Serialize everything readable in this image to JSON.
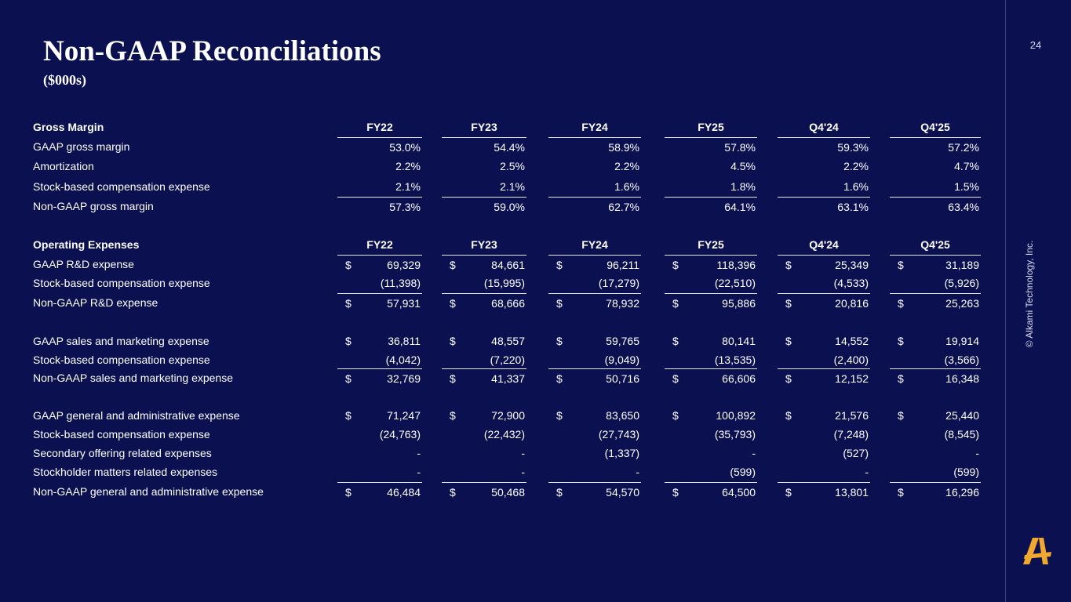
{
  "title": "Non-GAAP Reconciliations",
  "subtitle": "($000s)",
  "page_number": "24",
  "copyright": "© Alkami Technology, Inc.",
  "logo_icon": "alkami-a-logo-icon",
  "brand_color": "#f0a830",
  "background_color": "#0b1150",
  "gross_margin": {
    "header": {
      "label": "Gross Margin",
      "columns": [
        "FY22",
        "FY23",
        "FY24",
        "FY25",
        "Q4'24",
        "Q4'25"
      ]
    },
    "rows": [
      {
        "label": "GAAP gross margin",
        "values": [
          "53.0%",
          "54.4%",
          "58.9%",
          "57.8%",
          "59.3%",
          "57.2%"
        ]
      },
      {
        "label": "Amortization",
        "values": [
          "2.2%",
          "2.5%",
          "2.2%",
          "4.5%",
          "2.2%",
          "4.7%"
        ]
      },
      {
        "label": "Stock-based compensation expense",
        "values": [
          "2.1%",
          "2.1%",
          "1.6%",
          "1.8%",
          "1.6%",
          "1.5%"
        ]
      },
      {
        "label": "Non-GAAP gross margin",
        "values": [
          "57.3%",
          "59.0%",
          "62.7%",
          "64.1%",
          "63.1%",
          "63.4%"
        ]
      }
    ]
  },
  "operating_expenses": {
    "header": {
      "label": "Operating Expenses",
      "columns": [
        "FY22",
        "FY23",
        "FY24",
        "FY25",
        "Q4'24",
        "Q4'25"
      ]
    },
    "currency_symbol": "$",
    "rd": [
      {
        "label": "GAAP R&D expense",
        "values": [
          "69,329",
          "84,661",
          "96,211",
          "118,396",
          "25,349",
          "31,189"
        ]
      },
      {
        "label": "Stock-based compensation expense",
        "values": [
          "(11,398)",
          "(15,995)",
          "(17,279)",
          "(22,510)",
          "(4,533)",
          "(5,926)"
        ]
      },
      {
        "label": "Non-GAAP R&D expense",
        "values": [
          "57,931",
          "68,666",
          "78,932",
          "95,886",
          "20,816",
          "25,263"
        ]
      }
    ],
    "sales_marketing": [
      {
        "label": "GAAP sales and marketing expense",
        "values": [
          "36,811",
          "48,557",
          "59,765",
          "80,141",
          "14,552",
          "19,914"
        ]
      },
      {
        "label": "Stock-based compensation expense",
        "values": [
          "(4,042)",
          "(7,220)",
          "(9,049)",
          "(13,535)",
          "(2,400)",
          "(3,566)"
        ]
      },
      {
        "label": "Non-GAAP sales and marketing expense",
        "values": [
          "32,769",
          "41,337",
          "50,716",
          "66,606",
          "12,152",
          "16,348"
        ]
      }
    ],
    "general_admin": [
      {
        "label": "GAAP general and administrative expense",
        "values": [
          "71,247",
          "72,900",
          "83,650",
          "100,892",
          "21,576",
          "25,440"
        ]
      },
      {
        "label": "Stock-based compensation expense",
        "values": [
          "(24,763)",
          "(22,432)",
          "(27,743)",
          "(35,793)",
          "(7,248)",
          "(8,545)"
        ]
      },
      {
        "label": "Secondary offering related expenses",
        "values": [
          "-",
          "-",
          "(1,337)",
          "-",
          "(527)",
          "-"
        ]
      },
      {
        "label": "Stockholder matters related expenses",
        "values": [
          "-",
          "-",
          "-",
          "(599)",
          "-",
          "(599)"
        ]
      },
      {
        "label": "Non-GAAP general and administrative expense",
        "values": [
          "46,484",
          "50,468",
          "54,570",
          "64,500",
          "13,801",
          "16,296"
        ]
      }
    ]
  }
}
